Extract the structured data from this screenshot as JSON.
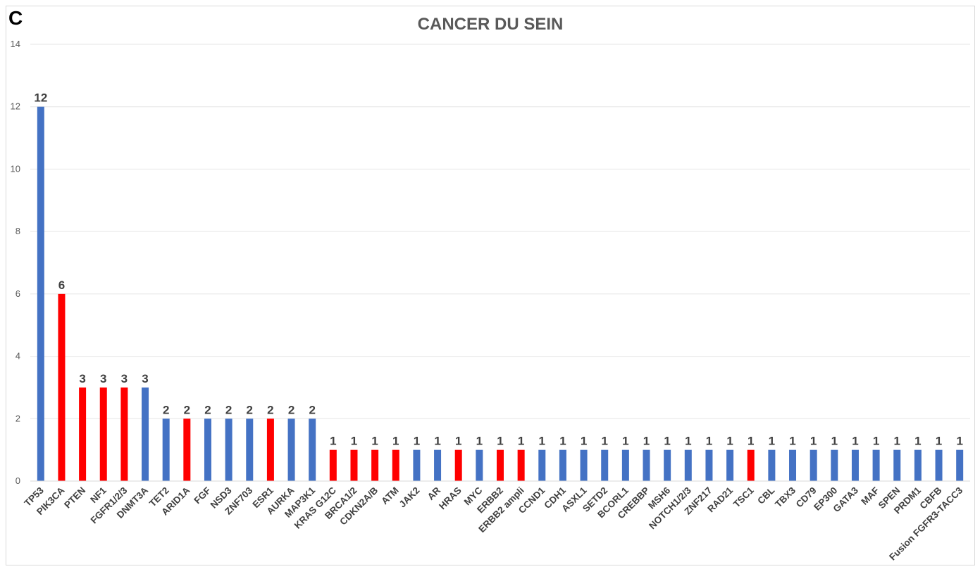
{
  "panel_label": "C",
  "chart_data": {
    "type": "bar",
    "title": "CANCER DU SEIN",
    "xlabel": "",
    "ylabel": "",
    "ylim": [
      0,
      14
    ],
    "yticks": [
      0,
      2,
      4,
      6,
      8,
      10,
      12,
      14
    ],
    "grid": true,
    "legend": "none",
    "colors": {
      "blue": "#4472c4",
      "red": "#ff0000"
    },
    "categories": [
      "TP53",
      "PIK3CA",
      "PTEN",
      "NF1",
      "FGFR1/2/3",
      "DNMT3A",
      "TET2",
      "ARID1A",
      "FGF",
      "NSD3",
      "ZNF703",
      "ESR1",
      "AURKA",
      "MAP3K1",
      "KRAS G12C",
      "BRCA1/2",
      "CDKN2A/B",
      "ATM",
      "JAK2",
      "AR",
      "HRAS",
      "MYC",
      "ERBB2",
      "ERBB2 ampli",
      "CCND1",
      "CDH1",
      "ASXL1",
      "SETD2",
      "BCORL1",
      "CREBBP",
      "MSH6",
      "NOTCH1/2/3",
      "ZNF217",
      "RAD21",
      "TSC1",
      "CBL",
      "TBX3",
      "CD79",
      "EP300",
      "GATA3",
      "MAF",
      "SPEN",
      "PRDM1",
      "CBFB",
      "Fusion FGFR3-TACC3"
    ],
    "values": [
      12,
      6,
      3,
      3,
      3,
      3,
      2,
      2,
      2,
      2,
      2,
      2,
      2,
      2,
      1,
      1,
      1,
      1,
      1,
      1,
      1,
      1,
      1,
      1,
      1,
      1,
      1,
      1,
      1,
      1,
      1,
      1,
      1,
      1,
      1,
      1,
      1,
      1,
      1,
      1,
      1,
      1,
      1,
      1,
      1
    ],
    "bar_colors": [
      "blue",
      "red",
      "red",
      "red",
      "red",
      "blue",
      "blue",
      "red",
      "blue",
      "blue",
      "blue",
      "red",
      "blue",
      "blue",
      "red",
      "red",
      "red",
      "red",
      "blue",
      "blue",
      "red",
      "blue",
      "red",
      "red",
      "blue",
      "blue",
      "blue",
      "blue",
      "blue",
      "blue",
      "blue",
      "blue",
      "blue",
      "blue",
      "red",
      "blue",
      "blue",
      "blue",
      "blue",
      "blue",
      "blue",
      "blue",
      "blue",
      "blue",
      "blue"
    ]
  }
}
